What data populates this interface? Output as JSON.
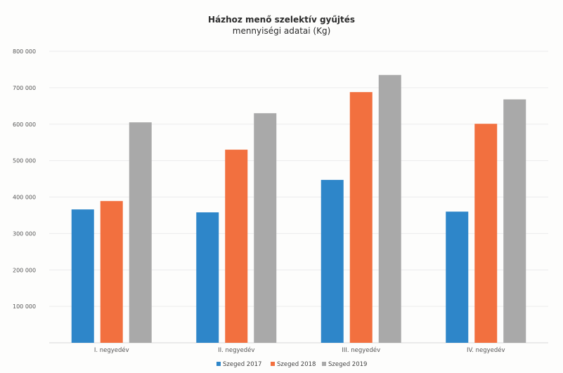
{
  "chart_data": {
    "type": "bar",
    "title": "Házhoz menő szelektív gyűjtés",
    "subtitle": "mennyiségi adatai (Kg)",
    "categories": [
      "I. negyedév",
      "II. negyedév",
      "III. negyedév",
      "IV. negyedév"
    ],
    "series": [
      {
        "name": "Szeged 2017",
        "color": "#2e86c9",
        "values": [
          366000,
          358000,
          447000,
          360000
        ]
      },
      {
        "name": "Szeged 2018",
        "color": "#f2703f",
        "values": [
          389000,
          530000,
          688000,
          601000
        ]
      },
      {
        "name": "Szeged 2019",
        "color": "#a9a9a9",
        "values": [
          605000,
          630000,
          735000,
          668000
        ]
      }
    ],
    "ylim": [
      0,
      800000
    ],
    "yticks": [
      "",
      "100 000",
      "200 000",
      "300 000",
      "400 000",
      "500 000",
      "600 000",
      "700 000",
      "800 000"
    ],
    "grid": true,
    "legend_position": "bottom"
  }
}
